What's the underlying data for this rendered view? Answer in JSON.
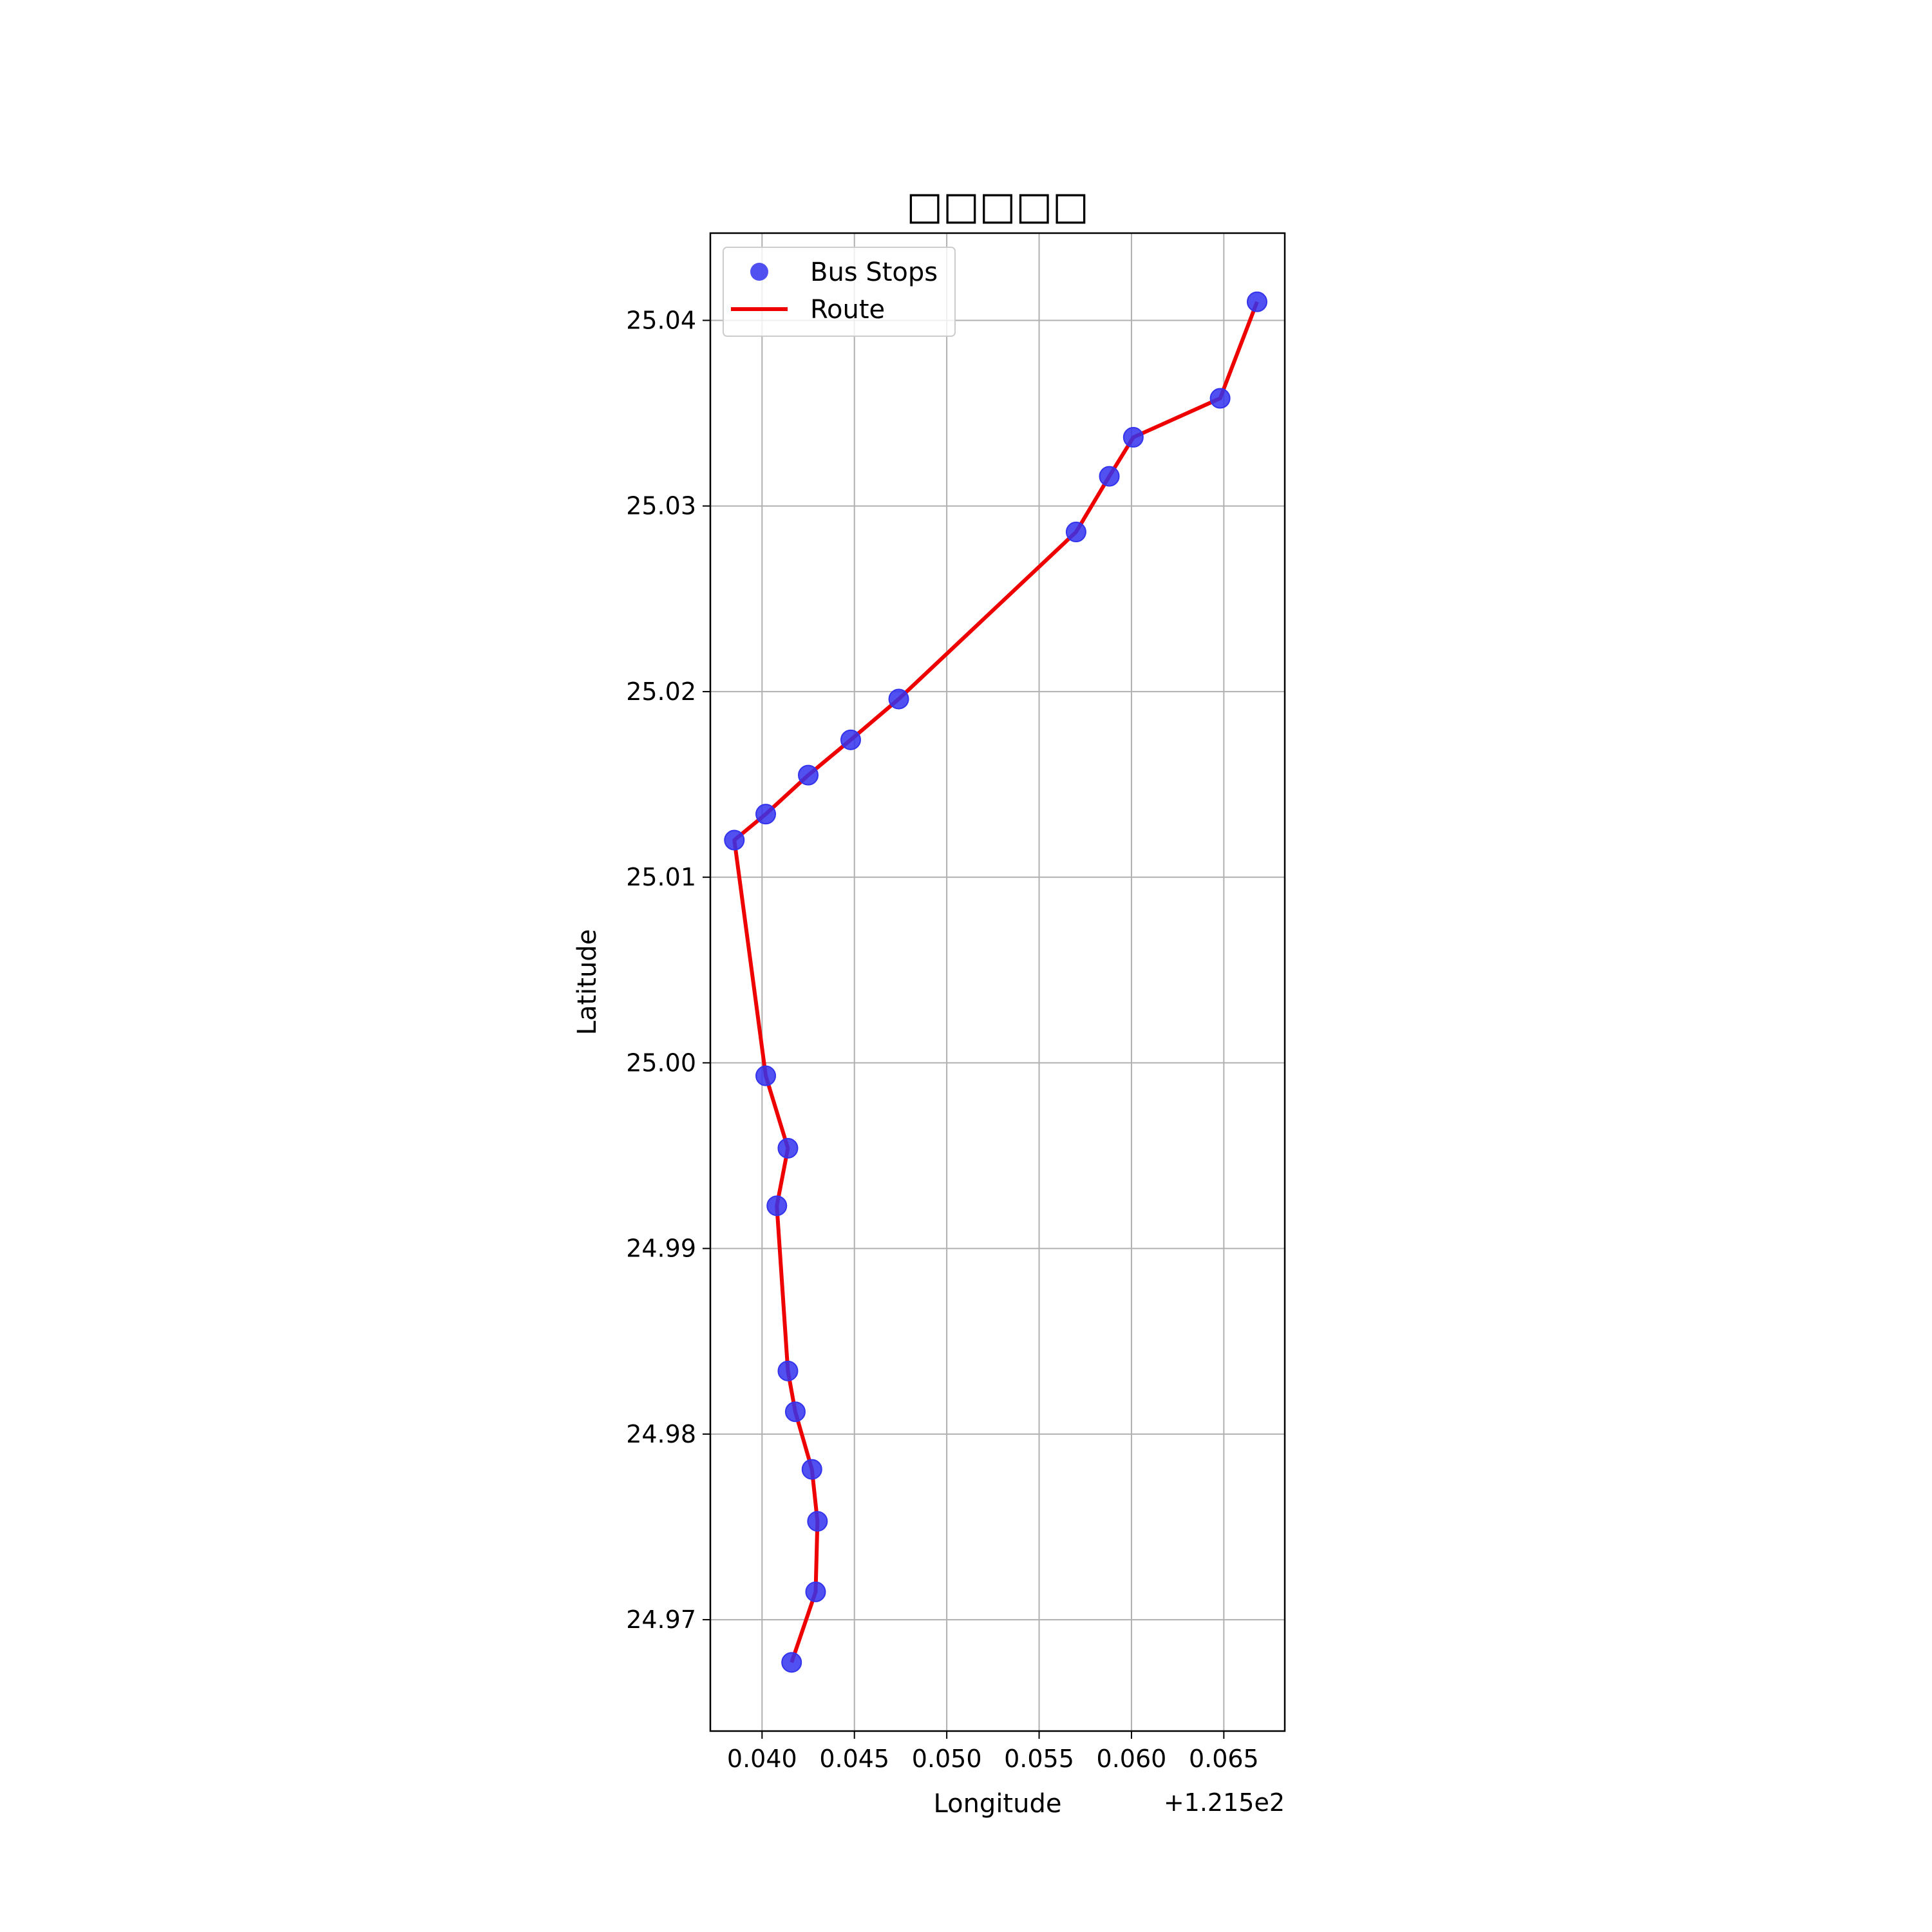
{
  "chart_data": {
    "type": "scatter",
    "title": "□□□□□",
    "xlabel": "Longitude",
    "ylabel": "Latitude",
    "x_offset_label": "+1.215e2",
    "xlim": [
      0.0372,
      0.0683
    ],
    "ylim": [
      24.964,
      25.0447
    ],
    "x_ticks": [
      0.04,
      0.045,
      0.05,
      0.055,
      0.06,
      0.065
    ],
    "x_tick_labels": [
      "0.040",
      "0.045",
      "0.050",
      "0.055",
      "0.060",
      "0.065"
    ],
    "y_ticks": [
      24.97,
      24.98,
      24.99,
      25.0,
      25.01,
      25.02,
      25.03,
      25.04
    ],
    "y_tick_labels": [
      "24.97",
      "24.98",
      "24.99",
      "25.00",
      "25.01",
      "25.02",
      "25.03",
      "25.04"
    ],
    "grid": true,
    "legend": {
      "position": "top-left",
      "entries": [
        "Bus Stops",
        "Route"
      ]
    },
    "colors": {
      "stops": "#3333ee",
      "route": "#ee0000",
      "grid": "#b0b0b0"
    },
    "series": [
      {
        "name": "Bus Stops",
        "kind": "scatter",
        "x": [
          0.0416,
          0.0429,
          0.043,
          0.0427,
          0.0418,
          0.0414,
          0.0408,
          0.0414,
          0.0402,
          0.0385,
          0.0402,
          0.0425,
          0.0448,
          0.0474,
          0.057,
          0.0588,
          0.0601,
          0.0648,
          0.0668
        ],
        "y": [
          24.9677,
          24.9715,
          24.9753,
          24.9781,
          24.9812,
          24.9834,
          24.9923,
          24.9954,
          24.9993,
          25.012,
          25.0134,
          25.0155,
          25.0174,
          25.0196,
          25.0286,
          25.0316,
          25.0337,
          25.0358,
          25.041
        ]
      },
      {
        "name": "Route",
        "kind": "line",
        "x": [
          0.0416,
          0.0429,
          0.043,
          0.0427,
          0.0418,
          0.0414,
          0.0408,
          0.0414,
          0.0402,
          0.0385,
          0.0402,
          0.0425,
          0.0448,
          0.0474,
          0.057,
          0.0588,
          0.0601,
          0.0648,
          0.0668
        ],
        "y": [
          24.9677,
          24.9715,
          24.9753,
          24.9781,
          24.9812,
          24.9834,
          24.9923,
          24.9954,
          24.9993,
          25.012,
          25.0134,
          25.0155,
          25.0174,
          25.0196,
          25.0286,
          25.0316,
          25.0337,
          25.0358,
          25.041
        ]
      }
    ]
  }
}
